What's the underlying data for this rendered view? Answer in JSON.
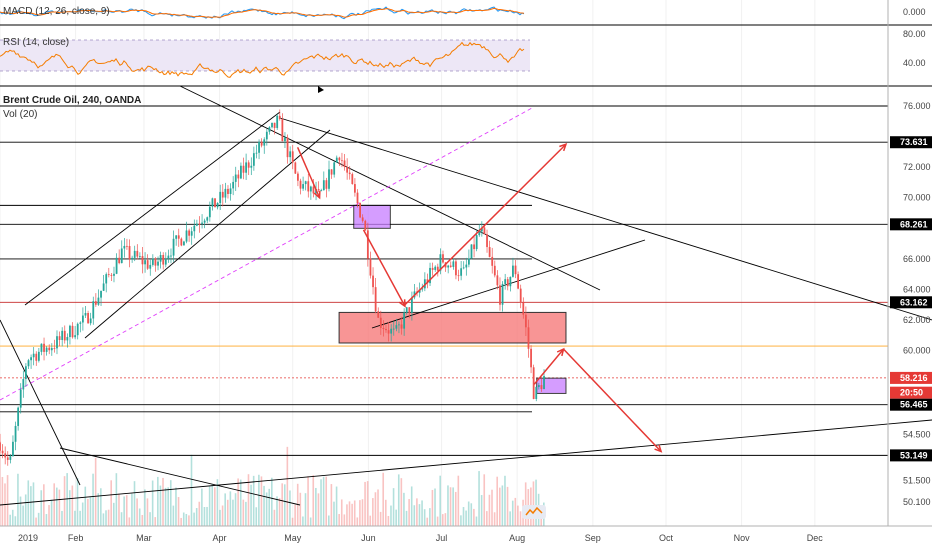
{
  "panes": {
    "macd_label": "MACD (12, 26, close, 9)",
    "rsi_label": "RSI (14, close)",
    "main_title": "Brent Crude Oil, 240, OANDA",
    "vol_label": "Vol (20)"
  },
  "macd_axis": [
    "0.000"
  ],
  "rsi_axis": [
    "80.00",
    "40.00"
  ],
  "price_axis": [
    "76.000",
    "72.000",
    "70.000",
    "66.000",
    "64.000",
    "62.000",
    "60.000",
    "54.500",
    "51.500",
    "50.100"
  ],
  "price_badges": [
    {
      "label": "73.631",
      "value": 73.631,
      "style": "dark"
    },
    {
      "label": "68.261",
      "value": 68.261,
      "style": "dark"
    },
    {
      "label": "63.162",
      "value": 63.162,
      "style": "dark"
    },
    {
      "label": "58.216",
      "value": 58.216,
      "style": "red"
    },
    {
      "label": "20:50",
      "value": 57.25,
      "style": "red"
    },
    {
      "label": "56.465",
      "value": 56.465,
      "style": "dark"
    },
    {
      "label": "53.149",
      "value": 53.149,
      "style": "dark"
    }
  ],
  "date_axis": [
    "2019",
    "Feb",
    "Mar",
    "Apr",
    "May",
    "Jun",
    "Jul",
    "Aug",
    "Sep",
    "Oct",
    "Nov",
    "Dec"
  ],
  "colors": {
    "up": "#26a69a",
    "down": "#ef5350",
    "rsi_line": "#f57c00",
    "rsi_band": "#ede7f6",
    "macd_line": "#2196f3",
    "signal_line": "#ff6d00",
    "demand_zone": "#f77b7b",
    "purple_zone": "#c77dff",
    "arrow": "#e53935",
    "ma_line": "#e040fb",
    "orange_level": "#ffa726"
  },
  "chart_data": {
    "type": "candlestick",
    "title": "Brent Crude Oil, 240, OANDA",
    "xlabel": "",
    "ylabel": "",
    "x_range": [
      "2019-01-01",
      "2019-12-31"
    ],
    "ylim": [
      49.5,
      77.5
    ],
    "price_path": [
      {
        "date": "2019-01-01",
        "price": 54.0
      },
      {
        "date": "2019-01-05",
        "price": 52.5
      },
      {
        "date": "2019-01-12",
        "price": 59.5
      },
      {
        "date": "2019-01-24",
        "price": 60.5
      },
      {
        "date": "2019-02-05",
        "price": 62.0
      },
      {
        "date": "2019-02-20",
        "price": 66.5
      },
      {
        "date": "2019-03-05",
        "price": 65.5
      },
      {
        "date": "2019-03-20",
        "price": 68.0
      },
      {
        "date": "2019-04-05",
        "price": 70.5
      },
      {
        "date": "2019-04-25",
        "price": 75.0
      },
      {
        "date": "2019-05-03",
        "price": 71.0
      },
      {
        "date": "2019-05-12",
        "price": 70.0
      },
      {
        "date": "2019-05-20",
        "price": 73.0
      },
      {
        "date": "2019-05-30",
        "price": 68.5
      },
      {
        "date": "2019-06-05",
        "price": 62.0
      },
      {
        "date": "2019-06-12",
        "price": 61.0
      },
      {
        "date": "2019-06-20",
        "price": 63.5
      },
      {
        "date": "2019-07-01",
        "price": 66.0
      },
      {
        "date": "2019-07-10",
        "price": 65.0
      },
      {
        "date": "2019-07-17",
        "price": 68.0
      },
      {
        "date": "2019-07-25",
        "price": 63.5
      },
      {
        "date": "2019-07-31",
        "price": 65.5
      },
      {
        "date": "2019-08-05",
        "price": 61.0
      },
      {
        "date": "2019-08-08",
        "price": 57.0
      },
      {
        "date": "2019-08-12",
        "price": 58.2
      }
    ],
    "horizontal_levels": [
      76.0,
      73.631,
      69.5,
      68.261,
      66.0,
      63.162,
      60.3,
      56.465,
      56.0,
      53.149
    ],
    "zones": [
      {
        "name": "demand",
        "from_date": "2019-05-20",
        "to_date": "2019-08-21",
        "low": 60.5,
        "high": 62.5
      },
      {
        "name": "supply",
        "from_date": "2019-05-26",
        "to_date": "2019-06-10",
        "low": 68.0,
        "high": 69.5
      },
      {
        "name": "current",
        "from_date": "2019-08-09",
        "to_date": "2019-08-21",
        "low": 57.2,
        "high": 58.2
      }
    ],
    "projection_arrows": [
      {
        "from": [
          "2019-06-16",
          63.0
        ],
        "to": [
          "2019-08-21",
          73.5
        ]
      },
      {
        "from": [
          "2019-08-08",
          57.8
        ],
        "to": [
          "2019-08-20",
          60.1
        ]
      },
      {
        "from": [
          "2019-08-20",
          60.1
        ],
        "to": [
          "2019-09-29",
          53.4
        ]
      },
      {
        "from": [
          "2019-05-03",
          73.3
        ],
        "to": [
          "2019-05-12",
          70.0
        ]
      },
      {
        "from": [
          "2019-05-30",
          67.9
        ],
        "to": [
          "2019-06-16",
          62.9
        ]
      }
    ]
  }
}
